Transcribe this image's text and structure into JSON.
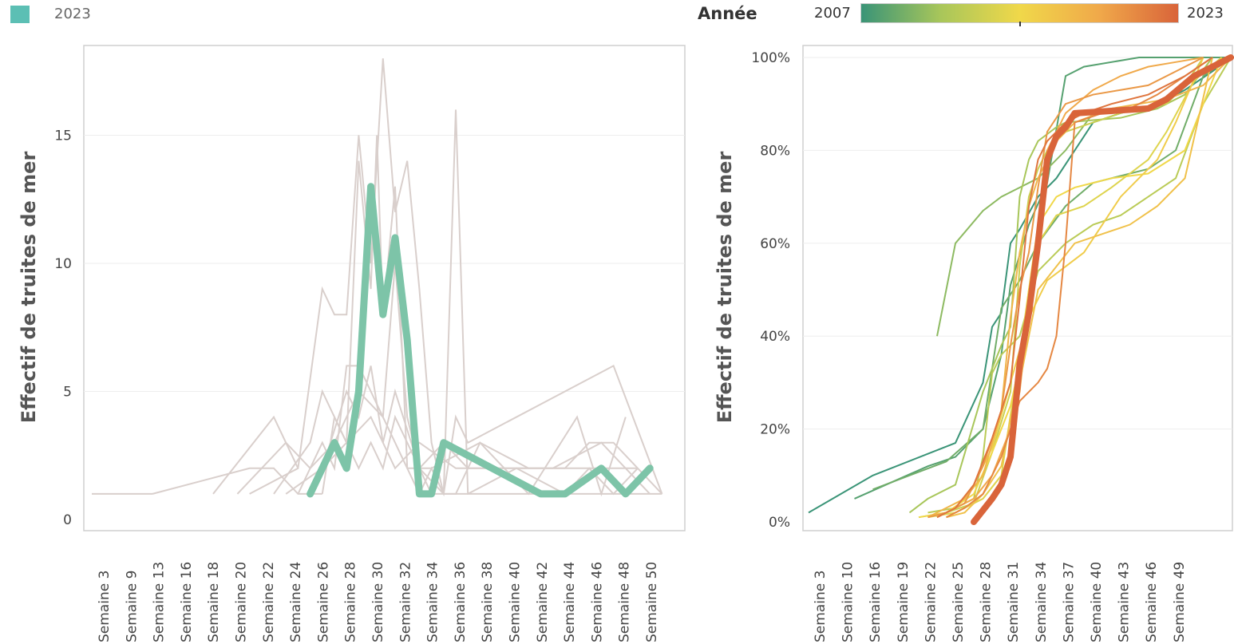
{
  "legend": {
    "label": "2023",
    "color": "#5cbfb4"
  },
  "color_scale": {
    "title": "Année",
    "min_label": "2007",
    "max_label": "2023",
    "colors": [
      "#3a9477",
      "#a8c65a",
      "#f0d84a",
      "#f0a94a",
      "#d9643a"
    ]
  },
  "chart_data": [
    {
      "type": "line",
      "ylabel": "Effectif de truites de mer",
      "ylim": [
        0,
        19
      ],
      "yticks": [
        0,
        5,
        10,
        15
      ],
      "xticks": [
        "Semaine 3",
        "Semaine 9",
        "Semaine 13",
        "Semaine 16",
        "Semaine 18",
        "Semaine 20",
        "Semaine 22",
        "Semaine 24",
        "Semaine 26",
        "Semaine 28",
        "Semaine 30",
        "Semaine 32",
        "Semaine 34",
        "Semaine 36",
        "Semaine 38",
        "Semaine 40",
        "Semaine 42",
        "Semaine 44",
        "Semaine 46",
        "Semaine 48",
        "Semaine 50"
      ],
      "grid": true,
      "highlight": {
        "name": "2023",
        "color": "#7dc4a8",
        "x": [
          21,
          23,
          24,
          25,
          26,
          27,
          28,
          29,
          30,
          31,
          32,
          40,
          42,
          45,
          47,
          49
        ],
        "y": [
          1,
          3,
          2,
          5,
          13,
          8,
          11,
          7,
          1,
          1,
          3,
          1,
          1,
          2,
          1,
          2
        ]
      },
      "background_series": [
        {
          "x": [
            3,
            8
          ],
          "y": [
            1,
            1
          ]
        },
        {
          "x": [
            8,
            16,
            18,
            20,
            22
          ],
          "y": [
            1,
            2,
            2,
            1,
            1
          ]
        },
        {
          "x": [
            13,
            18,
            19,
            20
          ],
          "y": [
            1,
            4,
            3,
            2
          ]
        },
        {
          "x": [
            16,
            20,
            22,
            23,
            24,
            25,
            26,
            27,
            28,
            29,
            30,
            31,
            32,
            33,
            34,
            50
          ],
          "y": [
            1,
            2,
            9,
            8,
            8,
            15,
            10,
            18,
            12,
            14,
            9,
            3,
            1,
            16,
            1,
            1
          ]
        },
        {
          "x": [
            18,
            21,
            22,
            24,
            25,
            26,
            26.5,
            27,
            28,
            29,
            30,
            31,
            32,
            33,
            34,
            46,
            50
          ],
          "y": [
            1,
            3,
            5,
            3,
            14,
            9,
            15,
            8,
            13,
            2,
            1,
            2,
            1,
            4,
            3,
            6,
            1
          ]
        },
        {
          "x": [
            20,
            22,
            23,
            24,
            25,
            26,
            27,
            28,
            29,
            30,
            32,
            34,
            36,
            40,
            42,
            44,
            46,
            48,
            50
          ],
          "y": [
            1,
            3,
            2,
            6,
            6,
            5,
            4,
            10,
            4,
            2,
            3,
            2,
            2,
            2,
            2,
            3,
            3,
            2,
            1
          ]
        },
        {
          "x": [
            21,
            22,
            24,
            25,
            26,
            27,
            28,
            30,
            32,
            34,
            38,
            42,
            44,
            46,
            48
          ],
          "y": [
            1,
            2,
            5,
            4,
            6,
            3,
            5,
            2,
            1,
            1,
            2,
            1,
            2,
            1,
            2
          ]
        },
        {
          "x": [
            22,
            23,
            25,
            26,
            27,
            28,
            29,
            31,
            33,
            35,
            39,
            43,
            45,
            47
          ],
          "y": [
            1,
            4,
            2,
            3,
            2,
            4,
            3,
            1,
            1,
            3,
            1,
            4,
            1,
            4
          ]
        },
        {
          "x": [
            19,
            22,
            24,
            26,
            28,
            30,
            33,
            37,
            41,
            45,
            49
          ],
          "y": [
            1,
            2,
            3,
            4,
            2,
            3,
            2,
            2,
            2,
            3,
            1
          ]
        },
        {
          "x": [
            15,
            19,
            21,
            23,
            25,
            27,
            29,
            31,
            35,
            39,
            44,
            48
          ],
          "y": [
            1,
            3,
            2,
            3,
            5,
            4,
            2,
            2,
            3,
            2,
            2,
            2
          ]
        }
      ]
    },
    {
      "type": "line",
      "ylabel": "Effectif de truites de mer",
      "ylim": [
        0,
        100
      ],
      "yticks": [
        "0%",
        "20%",
        "40%",
        "60%",
        "80%",
        "100%"
      ],
      "xticks": [
        "Semaine 3",
        "Semaine 10",
        "Semaine 16",
        "Semaine 19",
        "Semaine 22",
        "Semaine 25",
        "Semaine 28",
        "Semaine 31",
        "Semaine 34",
        "Semaine 37",
        "Semaine 40",
        "Semaine 43",
        "Semaine 46",
        "Semaine 49"
      ],
      "grid": true,
      "highlight": {
        "name": "2023",
        "color": "#d9643a",
        "x": [
          21,
          23,
          24,
          25,
          26,
          27,
          28,
          29,
          30,
          31,
          32,
          40,
          42,
          45,
          47,
          49
        ],
        "y": [
          0,
          5,
          8,
          14,
          34,
          45,
          60,
          78,
          83,
          85,
          88,
          89,
          91,
          96,
          98,
          100
        ]
      },
      "background_series": [
        {
          "year": 2007,
          "x": [
            3,
            10,
            19,
            22,
            23,
            24,
            25,
            26,
            28,
            30,
            34,
            37,
            41,
            44,
            47,
            49
          ],
          "y": [
            2,
            10,
            17,
            30,
            42,
            45,
            60,
            63,
            70,
            74,
            86,
            88,
            90,
            93,
            97,
            100
          ]
        },
        {
          "year": 2008,
          "x": [
            8,
            16,
            19,
            22,
            24,
            25,
            27,
            29,
            31,
            33,
            39,
            42,
            45,
            47,
            50
          ],
          "y": [
            5,
            12,
            14,
            20,
            36,
            51,
            64,
            73,
            96,
            98,
            100,
            100,
            100,
            100,
            100
          ]
        },
        {
          "year": 2009,
          "x": [
            10,
            18,
            22,
            24,
            26,
            28,
            31,
            34,
            40,
            43,
            46,
            49
          ],
          "y": [
            7,
            13,
            20,
            46,
            52,
            60,
            68,
            73,
            76,
            80,
            96,
            100
          ]
        },
        {
          "year": 2010,
          "x": [
            17,
            19,
            22,
            24,
            26,
            28,
            31,
            34,
            40,
            43,
            46,
            49
          ],
          "y": [
            40,
            60,
            67,
            70,
            72,
            74,
            80,
            88,
            89,
            92,
            97,
            100
          ]
        },
        {
          "year": 2011,
          "x": [
            14,
            16,
            19,
            22,
            24,
            25,
            26,
            27,
            28,
            30,
            31,
            37,
            39,
            41,
            44,
            47
          ],
          "y": [
            2,
            5,
            8,
            28,
            38,
            42,
            70,
            78,
            82,
            85,
            86,
            87,
            88,
            89,
            92,
            100
          ]
        },
        {
          "year": 2012,
          "x": [
            16,
            19,
            21,
            22,
            23,
            24,
            25,
            26,
            28,
            31,
            34,
            37,
            40,
            43,
            46,
            49
          ],
          "y": [
            2,
            3,
            5,
            14,
            32,
            36,
            38,
            40,
            54,
            60,
            64,
            66,
            70,
            74,
            90,
            100
          ]
        },
        {
          "year": 2013,
          "x": [
            15,
            18,
            21,
            23,
            25,
            26,
            27,
            28,
            29,
            31,
            34,
            37,
            39,
            42,
            44,
            46
          ],
          "y": [
            1,
            2,
            4,
            15,
            28,
            55,
            70,
            76,
            80,
            84,
            86,
            88,
            89,
            90,
            94,
            100
          ]
        },
        {
          "year": 2014,
          "x": [
            16,
            19,
            22,
            24,
            26,
            27,
            28,
            30,
            33,
            36,
            38,
            40,
            42,
            45,
            48
          ],
          "y": [
            1,
            2,
            5,
            10,
            36,
            50,
            60,
            66,
            68,
            72,
            75,
            78,
            84,
            95,
            100
          ]
        },
        {
          "year": 2015,
          "x": [
            15,
            18,
            21,
            23,
            24,
            25,
            26,
            27,
            28,
            30,
            32,
            34,
            36,
            40,
            44,
            48
          ],
          "y": [
            1,
            2,
            6,
            15,
            20,
            25,
            34,
            50,
            64,
            70,
            72,
            73,
            74,
            75,
            80,
            100
          ]
        },
        {
          "year": 2016,
          "x": [
            17,
            19,
            21,
            23,
            25,
            27,
            29,
            31,
            33,
            35,
            37,
            39,
            41,
            43,
            46
          ],
          "y": [
            1,
            3,
            8,
            16,
            30,
            44,
            52,
            55,
            58,
            64,
            70,
            74,
            78,
            86,
            100
          ]
        },
        {
          "year": 2017,
          "x": [
            18,
            20,
            22,
            24,
            25,
            26,
            27,
            28,
            30,
            32,
            35,
            38,
            41,
            44,
            47
          ],
          "y": [
            1,
            2,
            6,
            12,
            22,
            30,
            40,
            50,
            55,
            60,
            62,
            64,
            68,
            74,
            100
          ]
        },
        {
          "year": 2018,
          "x": [
            16,
            18,
            20,
            22,
            24,
            25,
            26,
            27,
            28,
            30,
            32,
            36,
            42,
            46,
            49
          ],
          "y": [
            1,
            3,
            5,
            10,
            24,
            44,
            58,
            68,
            74,
            82,
            86,
            89,
            91,
            94,
            100
          ]
        },
        {
          "year": 2019,
          "x": [
            17,
            19,
            21,
            23,
            25,
            26,
            27,
            28,
            29,
            31,
            34,
            37,
            40,
            43,
            46
          ],
          "y": [
            1,
            3,
            5,
            10,
            20,
            28,
            46,
            62,
            80,
            88,
            93,
            96,
            98,
            99,
            100
          ]
        },
        {
          "year": 2020,
          "x": [
            16,
            18,
            20,
            22,
            24,
            25,
            26,
            27,
            28,
            29,
            31,
            34,
            37,
            40,
            43,
            46
          ],
          "y": [
            1,
            2,
            4,
            12,
            24,
            38,
            50,
            58,
            72,
            84,
            90,
            92,
            93,
            94,
            97,
            100
          ]
        },
        {
          "year": 2021,
          "x": [
            18,
            20,
            22,
            24,
            26,
            28,
            29,
            30,
            31,
            32,
            35,
            38,
            41,
            44,
            47
          ],
          "y": [
            1,
            3,
            6,
            14,
            26,
            30,
            33,
            40,
            60,
            86,
            88,
            89,
            92,
            96,
            100
          ]
        },
        {
          "year": 2022,
          "x": [
            17,
            19,
            21,
            23,
            25,
            26,
            27,
            28,
            29,
            31,
            33,
            36,
            40,
            44,
            47
          ],
          "y": [
            1,
            3,
            8,
            18,
            30,
            48,
            68,
            78,
            82,
            86,
            88,
            90,
            92,
            96,
            100
          ]
        }
      ]
    }
  ]
}
